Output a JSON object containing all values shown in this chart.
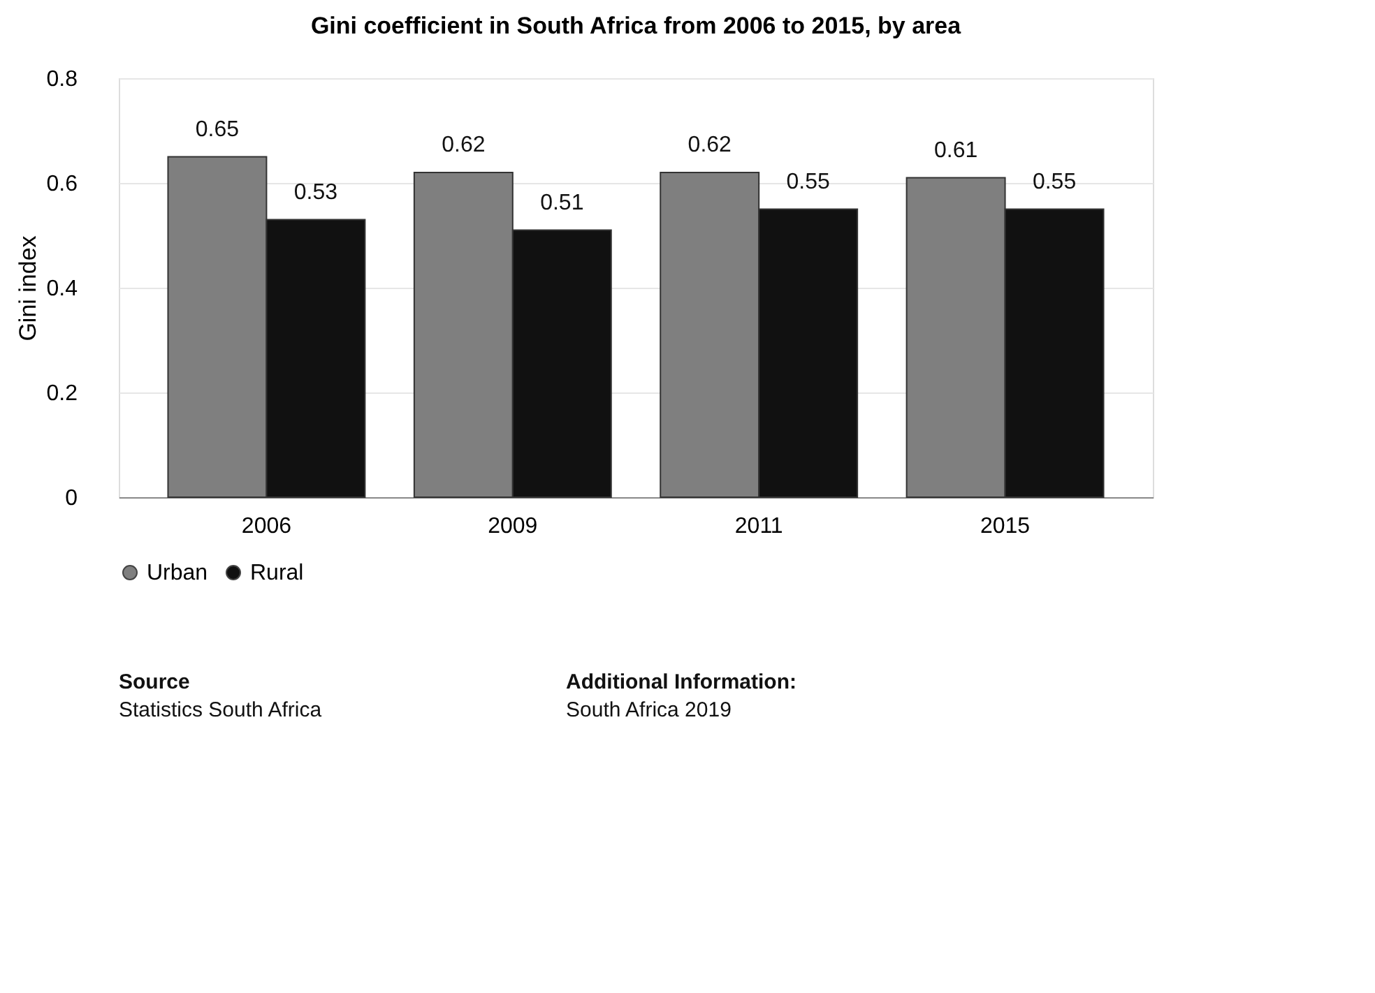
{
  "chart_data": {
    "type": "bar",
    "title": "Gini coefficient in South Africa from 2006 to 2015, by area",
    "ylabel": "Gini index",
    "categories": [
      "2006",
      "2009",
      "2011",
      "2015"
    ],
    "series": [
      {
        "name": "Urban",
        "color": "#7f7f7f",
        "values": [
          0.65,
          0.62,
          0.62,
          0.61
        ]
      },
      {
        "name": "Rural",
        "color": "#111111",
        "values": [
          0.53,
          0.51,
          0.55,
          0.55
        ]
      }
    ],
    "ylim": [
      0,
      0.8
    ],
    "yticks": [
      0,
      0.2,
      0.4,
      0.6,
      0.8
    ],
    "grid": "y",
    "legend": "bottom",
    "data_labels": true,
    "annotations": [
      "Source",
      "Statistics South Africa",
      "Additional Information:",
      "South Africa 2019"
    ]
  }
}
